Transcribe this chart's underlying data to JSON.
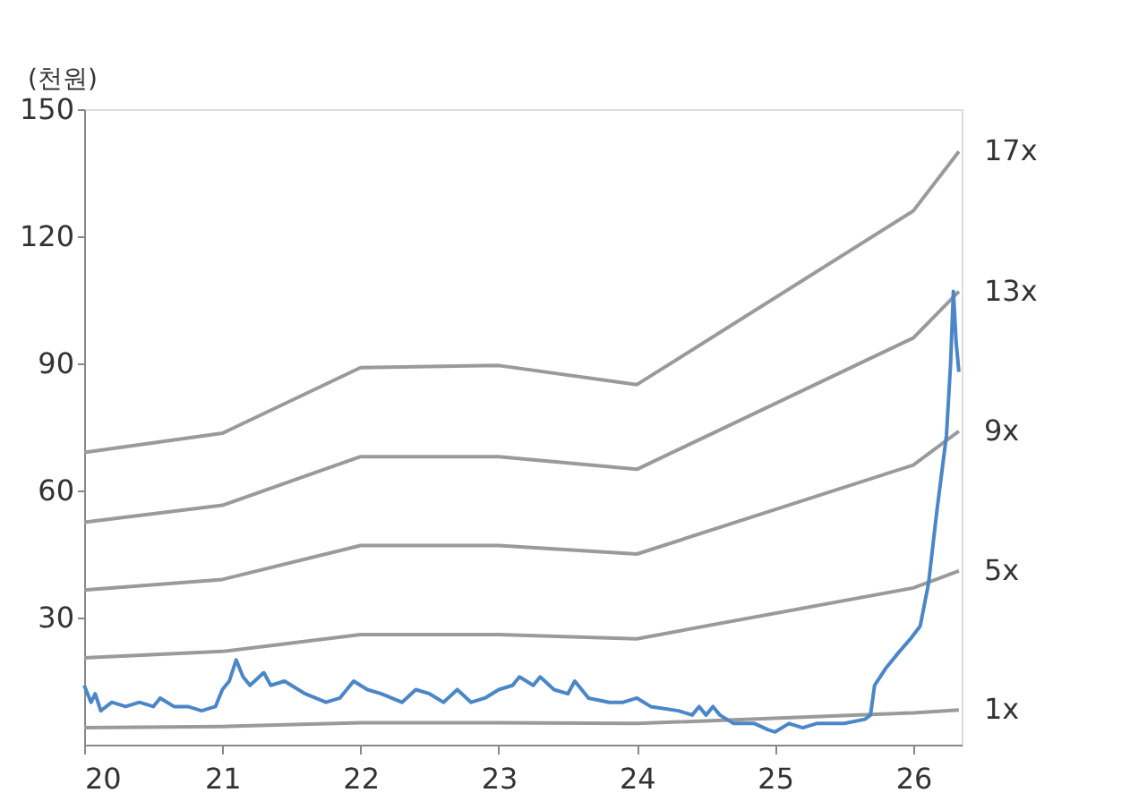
{
  "chart_data": {
    "type": "line",
    "ylabel": "(천원)",
    "xlim": [
      20,
      26.35
    ],
    "xticks": [
      20,
      21,
      22,
      23,
      24,
      25,
      26
    ],
    "ylim": [
      0,
      150
    ],
    "yticks": [
      30,
      60,
      90,
      120,
      150
    ],
    "grid": false,
    "legend": false,
    "marker": "none",
    "line_style": "solid",
    "series": [
      {
        "name": "17x",
        "color": "#9a9a9a",
        "x": [
          20,
          21,
          22,
          23,
          24,
          26,
          26.33
        ],
        "values": [
          69,
          73.5,
          89,
          89.5,
          85,
          126,
          140
        ]
      },
      {
        "name": "13x",
        "color": "#9a9a9a",
        "x": [
          20,
          21,
          22,
          23,
          24,
          26,
          26.33
        ],
        "values": [
          52.5,
          56.5,
          68,
          68,
          65,
          96,
          107
        ]
      },
      {
        "name": "9x",
        "color": "#9a9a9a",
        "x": [
          20,
          21,
          22,
          23,
          24,
          26,
          26.33
        ],
        "values": [
          36.5,
          39,
          47,
          47,
          45,
          66,
          74
        ]
      },
      {
        "name": "5x",
        "color": "#9a9a9a",
        "x": [
          20,
          21,
          22,
          23,
          24,
          26,
          26.33
        ],
        "values": [
          20.5,
          22,
          26,
          26,
          25,
          37,
          41
        ]
      },
      {
        "name": "1x",
        "color": "#9a9a9a",
        "x": [
          20,
          21,
          22,
          23,
          24,
          26,
          26.33
        ],
        "values": [
          4,
          4.3,
          5.2,
          5.2,
          5,
          7.5,
          8.2
        ]
      },
      {
        "color": "#4a86c8",
        "x": [
          20.0,
          20.05,
          20.08,
          20.12,
          20.2,
          20.3,
          20.4,
          20.5,
          20.55,
          20.65,
          20.75,
          20.85,
          20.95,
          21.0,
          21.05,
          21.1,
          21.15,
          21.2,
          21.3,
          21.35,
          21.45,
          21.6,
          21.75,
          21.85,
          21.95,
          22.05,
          22.15,
          22.3,
          22.4,
          22.5,
          22.6,
          22.7,
          22.8,
          22.9,
          23.0,
          23.1,
          23.15,
          23.25,
          23.3,
          23.4,
          23.5,
          23.55,
          23.65,
          23.8,
          23.9,
          24.0,
          24.1,
          24.3,
          24.4,
          24.45,
          24.5,
          24.55,
          24.6,
          24.7,
          24.85,
          24.95,
          25.0,
          25.1,
          25.2,
          25.3,
          25.5,
          25.65,
          25.69,
          25.72,
          25.8,
          25.9,
          25.98,
          26.05,
          26.11,
          26.17,
          26.24,
          26.27,
          26.29,
          26.31,
          26.33
        ],
        "values": [
          14,
          10,
          12,
          8,
          10,
          9,
          10,
          9,
          11,
          9,
          9,
          8,
          9,
          13,
          15,
          20,
          16,
          14,
          17,
          14,
          15,
          12,
          10,
          11,
          15,
          13,
          12,
          10,
          13,
          12,
          10,
          13,
          10,
          11,
          13,
          14,
          16,
          14,
          16,
          13,
          12,
          15,
          11,
          10,
          10,
          11,
          9,
          8,
          7,
          9,
          7,
          9,
          7,
          5,
          5,
          3.5,
          3,
          5,
          4,
          5,
          5,
          6,
          7,
          14,
          18,
          22,
          25,
          28,
          38,
          55,
          73,
          90,
          107,
          95,
          88
        ]
      }
    ]
  }
}
